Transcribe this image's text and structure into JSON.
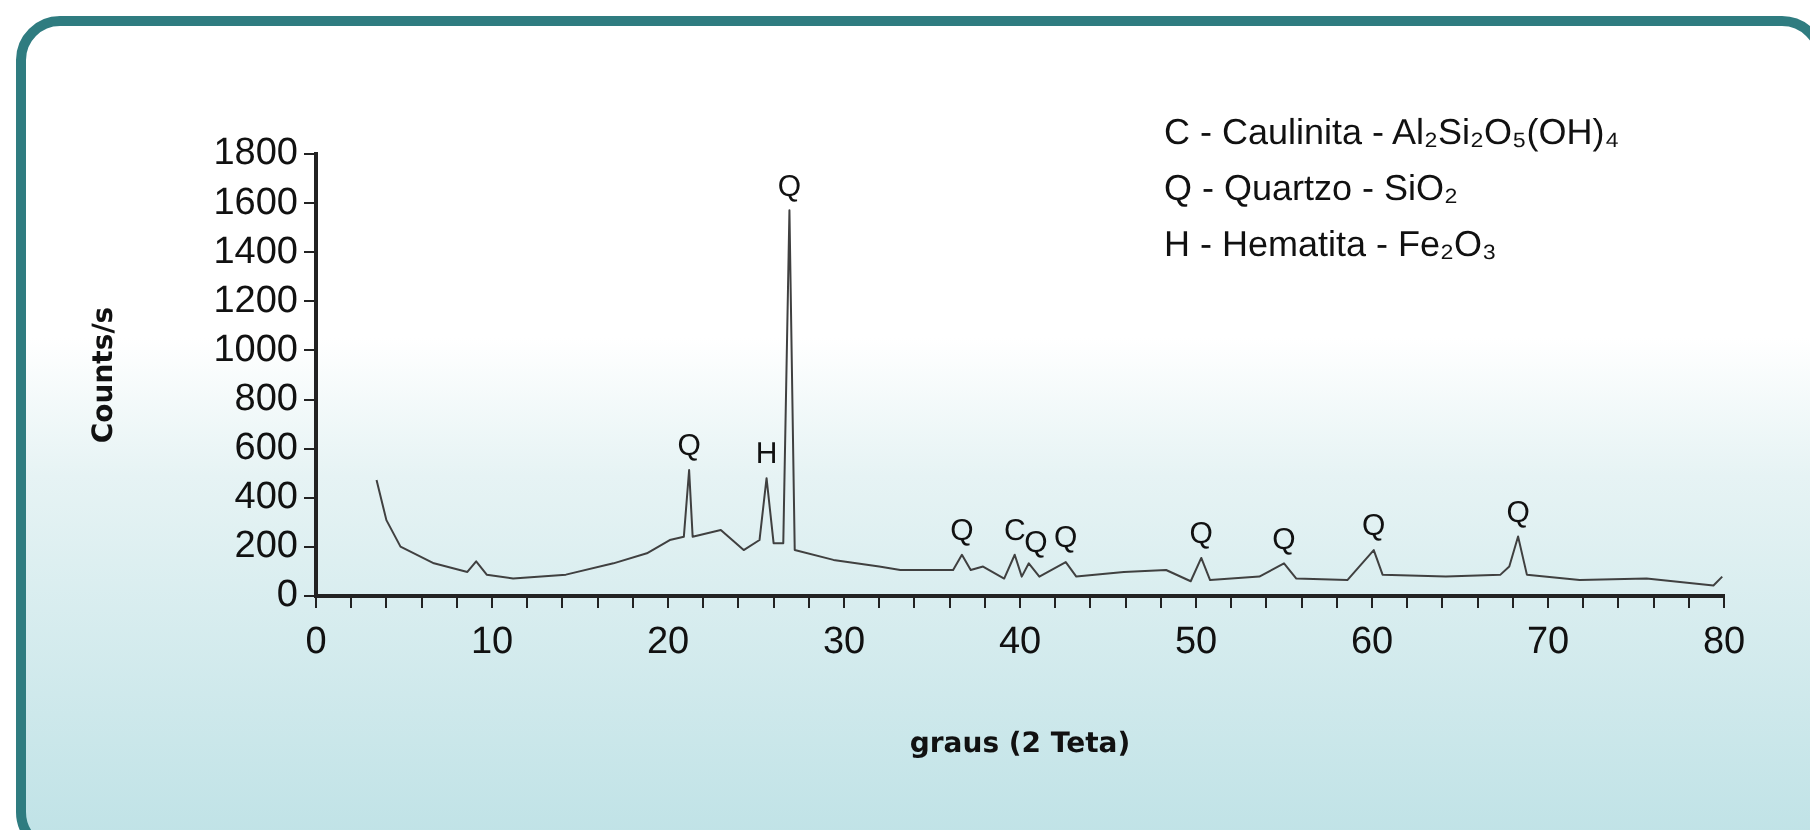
{
  "chart_data": {
    "type": "line",
    "xlabel": "graus (2 Teta)",
    "ylabel": "Counts/s",
    "x": [
      3.44,
      4.0,
      4.8,
      6.7,
      8.6,
      9.1,
      9.7,
      11.2,
      14.2,
      16.9,
      18.8,
      20.1,
      20.9,
      21.2,
      21.4,
      23.0,
      24.3,
      25.2,
      25.6,
      26.0,
      26.55,
      26.9,
      27.2,
      29.4,
      32.0,
      33.2,
      36.2,
      36.7,
      37.2,
      37.9,
      39.1,
      39.7,
      40.1,
      40.5,
      41.1,
      42.6,
      43.2,
      45.9,
      48.3,
      49.7,
      50.3,
      50.8,
      53.6,
      55.0,
      55.7,
      58.6,
      60.1,
      60.6,
      64.2,
      67.3,
      67.8,
      68.3,
      68.8,
      71.8,
      75.6,
      79.4,
      79.9
    ],
    "series": [
      {
        "color": "#404040",
        "values": [
          472,
          309,
          201,
          133,
          98,
          141,
          87,
          71,
          87,
          133,
          174,
          228,
          241,
          513,
          241,
          269,
          187,
          228,
          480,
          215,
          215,
          1571,
          187,
          147,
          120,
          106,
          106,
          168,
          106,
          120,
          71,
          168,
          79,
          133,
          79,
          138,
          79,
          98,
          106,
          60,
          155,
          65,
          79,
          133,
          71,
          65,
          187,
          87,
          79,
          87,
          120,
          242,
          87,
          65,
          71,
          43,
          79
        ]
      }
    ],
    "xlim": [
      0,
      80
    ],
    "ylim": [
      0,
      1800
    ],
    "xticks": [
      0,
      {
        "value": 2,
        "label": null
      },
      {
        "value": 4,
        "label": null
      },
      {
        "value": 6,
        "label": null
      },
      {
        "value": 8,
        "label": null
      },
      10,
      {
        "value": 12,
        "label": null
      },
      {
        "value": 14,
        "label": null
      },
      {
        "value": 16,
        "label": null
      },
      {
        "value": 18,
        "label": null
      },
      20,
      {
        "value": 22,
        "label": null
      },
      {
        "value": 24,
        "label": null
      },
      {
        "value": 26,
        "label": null
      },
      {
        "value": 28,
        "label": null
      },
      30,
      {
        "value": 32,
        "label": null
      },
      {
        "value": 34,
        "label": null
      },
      {
        "value": 36,
        "label": null
      },
      {
        "value": 38,
        "label": null
      },
      40,
      {
        "value": 42,
        "label": null
      },
      {
        "value": 44,
        "label": null
      },
      {
        "value": 46,
        "label": null
      },
      {
        "value": 48,
        "label": null
      },
      50,
      {
        "value": 52,
        "label": null
      },
      {
        "value": 54,
        "label": null
      },
      {
        "value": 56,
        "label": null
      },
      {
        "value": 58,
        "label": null
      },
      60,
      {
        "value": 62,
        "label": null
      },
      {
        "value": 64,
        "label": null
      },
      {
        "value": 66,
        "label": null
      },
      {
        "value": 68,
        "label": null
      },
      70,
      {
        "value": 72,
        "label": null
      },
      {
        "value": 74,
        "label": null
      },
      {
        "value": 76,
        "label": null
      },
      {
        "value": 78,
        "label": null
      },
      80
    ],
    "yticks": [
      0,
      200,
      400,
      600,
      800,
      1000,
      1200,
      1400,
      1600,
      1800
    ],
    "grid": false,
    "legend": false,
    "marker": "none",
    "line_style": "solid",
    "annotations": [
      {
        "text": "Q",
        "x": 21.2,
        "y": 513
      },
      {
        "text": "H",
        "x": 25.6,
        "y": 480
      },
      {
        "text": "Q",
        "x": 26.9,
        "y": 1571
      },
      {
        "text": "Q",
        "x": 36.7,
        "y": 168
      },
      {
        "text": "C",
        "x": 39.7,
        "y": 168
      },
      {
        "text": "Q",
        "x": 40.9,
        "y": 120
      },
      {
        "text": "Q",
        "x": 42.6,
        "y": 138
      },
      {
        "text": "Q",
        "x": 50.3,
        "y": 155
      },
      {
        "text": "Q",
        "x": 55.0,
        "y": 133
      },
      {
        "text": "Q",
        "x": 60.1,
        "y": 187
      },
      {
        "text": "Q",
        "x": 68.3,
        "y": 242
      },
      "C - Caulinita - Al₂Si₂O₅(OH)₄",
      "Q - Quartzo - SiO₂",
      "H - Hematita - Fe₂O₃"
    ]
  }
}
